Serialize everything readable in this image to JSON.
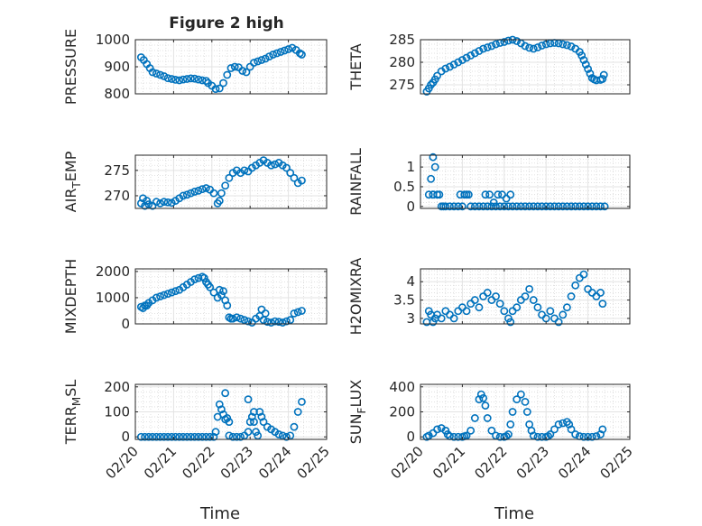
{
  "figure": {
    "title": "Figure 2 high",
    "xlabel": "Time",
    "background": "#ffffff",
    "marker_color": "#0072bd"
  },
  "chart_data": [
    {
      "type": "scatter",
      "id": "pressure",
      "title": "Figure 2 high",
      "ylabel": "PRESSURE",
      "ylabel_main": "PRESSURE",
      "ylabel_sub": "",
      "ylabel_tail": "",
      "xlim": [
        0,
        5
      ],
      "ylim": [
        800,
        1000
      ],
      "yticks": [
        800,
        900,
        1000
      ],
      "ytick_labels": [
        "800",
        "900",
        "1000"
      ],
      "xticks": [
        0,
        1,
        2,
        3,
        4,
        5
      ],
      "xtick_labels": [],
      "xlabel": "",
      "x": [
        0.15,
        0.22,
        0.3,
        0.38,
        0.45,
        0.55,
        0.65,
        0.75,
        0.85,
        0.95,
        1.05,
        1.15,
        1.25,
        1.35,
        1.45,
        1.55,
        1.65,
        1.75,
        1.85,
        1.9,
        2.0,
        2.1,
        2.2,
        2.3,
        2.4,
        2.5,
        2.6,
        2.7,
        2.8,
        2.9,
        3.0,
        3.1,
        3.2,
        3.3,
        3.4,
        3.5,
        3.6,
        3.7,
        3.8,
        3.9,
        4.0,
        4.1,
        4.2,
        4.3,
        4.35
      ],
      "y": [
        935,
        925,
        910,
        895,
        880,
        875,
        870,
        865,
        858,
        855,
        852,
        850,
        853,
        855,
        857,
        856,
        853,
        850,
        848,
        840,
        830,
        818,
        820,
        840,
        870,
        895,
        900,
        898,
        885,
        880,
        900,
        915,
        920,
        925,
        930,
        938,
        945,
        950,
        955,
        960,
        965,
        970,
        962,
        950,
        945
      ]
    },
    {
      "type": "scatter",
      "id": "theta",
      "ylabel": "THETA",
      "ylabel_main": "THETA",
      "ylabel_sub": "",
      "ylabel_tail": "",
      "xlim": [
        0,
        5
      ],
      "ylim": [
        273,
        285
      ],
      "yticks": [
        275,
        280,
        285
      ],
      "ytick_labels": [
        "275",
        "280",
        "285"
      ],
      "xticks": [
        0,
        1,
        2,
        3,
        4,
        5
      ],
      "xtick_labels": [],
      "xlabel": "",
      "x": [
        0.15,
        0.2,
        0.25,
        0.3,
        0.35,
        0.4,
        0.5,
        0.6,
        0.7,
        0.8,
        0.9,
        1.0,
        1.1,
        1.2,
        1.3,
        1.4,
        1.5,
        1.6,
        1.7,
        1.8,
        1.9,
        2.0,
        2.1,
        2.2,
        2.3,
        2.4,
        2.5,
        2.6,
        2.7,
        2.8,
        2.9,
        3.0,
        3.1,
        3.2,
        3.3,
        3.4,
        3.5,
        3.6,
        3.7,
        3.8,
        3.85,
        3.9,
        3.95,
        4.0,
        4.05,
        4.1,
        4.15,
        4.2,
        4.3,
        4.35,
        4.38
      ],
      "y": [
        273.5,
        274.2,
        275.0,
        275.5,
        276.2,
        277.0,
        278.0,
        278.6,
        279.0,
        279.5,
        280.0,
        280.5,
        281.0,
        281.5,
        282.0,
        282.5,
        283.0,
        283.3,
        283.6,
        284.0,
        284.3,
        284.5,
        284.8,
        285.0,
        284.7,
        284.2,
        283.6,
        283.2,
        283.0,
        283.3,
        283.7,
        284.0,
        284.2,
        284.3,
        284.2,
        284.0,
        283.8,
        283.5,
        283.0,
        282.3,
        281.5,
        280.5,
        279.5,
        278.5,
        277.5,
        276.5,
        276.2,
        276.0,
        276.1,
        276.3,
        277.2
      ]
    },
    {
      "type": "scatter",
      "id": "air-temp",
      "ylabel": "AIR_TEMP",
      "ylabel_main": "AIR",
      "ylabel_sub": "T",
      "ylabel_tail": "EMP",
      "xlim": [
        0,
        5
      ],
      "ylim": [
        267.5,
        278
      ],
      "yticks": [
        270,
        275
      ],
      "ytick_labels": [
        "270",
        "275"
      ],
      "xticks": [
        0,
        1,
        2,
        3,
        4,
        5
      ],
      "xtick_labels": [],
      "xlabel": "",
      "x": [
        0.15,
        0.2,
        0.25,
        0.3,
        0.35,
        0.45,
        0.55,
        0.65,
        0.75,
        0.85,
        0.95,
        1.05,
        1.15,
        1.25,
        1.35,
        1.45,
        1.55,
        1.65,
        1.75,
        1.85,
        1.95,
        2.05,
        2.15,
        2.2,
        2.25,
        2.35,
        2.45,
        2.55,
        2.65,
        2.75,
        2.85,
        2.95,
        3.05,
        3.15,
        3.25,
        3.35,
        3.45,
        3.55,
        3.65,
        3.75,
        3.85,
        3.95,
        4.05,
        4.15,
        4.25,
        4.35
      ],
      "y": [
        268.5,
        269.5,
        268.0,
        269.0,
        268.3,
        268.0,
        268.8,
        268.5,
        268.8,
        268.7,
        268.6,
        269.0,
        269.5,
        270.0,
        270.2,
        270.5,
        270.8,
        271.0,
        271.3,
        271.5,
        271.2,
        270.5,
        268.5,
        269.0,
        270.5,
        272.0,
        273.5,
        274.5,
        275.0,
        274.5,
        275.0,
        274.8,
        275.5,
        276.0,
        276.5,
        277.0,
        276.5,
        276.0,
        276.2,
        276.5,
        276.0,
        275.5,
        274.5,
        273.5,
        272.5,
        273.0
      ]
    },
    {
      "type": "scatter",
      "id": "rainfall",
      "ylabel": "RAINFALL",
      "ylabel_main": "RAINFALL",
      "ylabel_sub": "",
      "ylabel_tail": "",
      "xlim": [
        0,
        5
      ],
      "ylim": [
        -0.05,
        1.3
      ],
      "yticks": [
        0,
        0.5,
        1
      ],
      "ytick_labels": [
        "0",
        "0.5",
        "1"
      ],
      "xticks": [
        0,
        1,
        2,
        3,
        4,
        5
      ],
      "xtick_labels": [],
      "xlabel": "",
      "x": [
        0.2,
        0.25,
        0.3,
        0.35,
        0.4,
        0.45,
        0.5,
        0.55,
        0.6,
        0.7,
        0.8,
        0.9,
        1.0,
        1.1,
        1.2,
        1.3,
        1.4,
        1.5,
        1.6,
        1.7,
        1.8,
        1.9,
        2.0,
        2.1,
        2.2,
        2.3,
        2.4,
        2.5,
        2.6,
        2.7,
        2.8,
        2.9,
        3.0,
        3.1,
        3.2,
        3.3,
        3.4,
        3.5,
        3.6,
        3.7,
        3.8,
        3.9,
        4.0,
        4.1,
        4.2,
        4.3,
        4.4,
        0.95,
        1.05,
        1.15,
        1.55,
        1.65,
        1.75,
        1.85,
        1.95,
        2.05,
        2.15,
        0.3,
        0.3
      ],
      "y": [
        0.3,
        0.7,
        1.25,
        1.0,
        0.3,
        0.3,
        0,
        0,
        0,
        0,
        0,
        0,
        0,
        0.3,
        0,
        0,
        0,
        0,
        0,
        0,
        0,
        0,
        0,
        0,
        0,
        0,
        0,
        0,
        0,
        0,
        0,
        0,
        0,
        0,
        0,
        0,
        0,
        0,
        0,
        0,
        0,
        0,
        0,
        0,
        0,
        0,
        0,
        0.3,
        0.3,
        0.3,
        0.3,
        0.3,
        0.1,
        0.3,
        0.3,
        0.2,
        0.3,
        0.3,
        0.3
      ]
    },
    {
      "type": "scatter",
      "id": "mixdepth",
      "ylabel": "MIXDEPTH",
      "ylabel_main": "MIXDEPTH",
      "ylabel_sub": "",
      "ylabel_tail": "",
      "xlim": [
        0,
        5
      ],
      "ylim": [
        0,
        2100
      ],
      "yticks": [
        0,
        1000,
        2000
      ],
      "ytick_labels": [
        "0",
        "1000",
        "2000"
      ],
      "xticks": [
        0,
        1,
        2,
        3,
        4,
        5
      ],
      "xtick_labels": [],
      "xlabel": "",
      "x": [
        0.15,
        0.2,
        0.25,
        0.3,
        0.35,
        0.45,
        0.55,
        0.65,
        0.75,
        0.85,
        0.95,
        1.05,
        1.15,
        1.25,
        1.35,
        1.45,
        1.55,
        1.65,
        1.75,
        1.8,
        1.85,
        1.9,
        1.95,
        2.05,
        2.15,
        2.25,
        2.35,
        2.4,
        2.45,
        2.5,
        2.55,
        2.65,
        2.75,
        2.85,
        2.95,
        3.05,
        3.15,
        3.25,
        3.35,
        3.45,
        3.55,
        3.65,
        3.75,
        3.85,
        3.95,
        4.05,
        4.15,
        4.25,
        4.35,
        2.2,
        2.3,
        3.3,
        3.4
      ],
      "y": [
        650,
        600,
        700,
        700,
        800,
        900,
        1000,
        1050,
        1100,
        1150,
        1200,
        1250,
        1300,
        1400,
        1500,
        1600,
        1700,
        1750,
        1800,
        1750,
        1600,
        1500,
        1400,
        1200,
        1000,
        1100,
        900,
        700,
        250,
        200,
        200,
        250,
        200,
        150,
        100,
        50,
        200,
        300,
        150,
        80,
        50,
        100,
        80,
        50,
        100,
        150,
        400,
        450,
        500,
        1300,
        1250,
        550,
        400
      ]
    },
    {
      "type": "scatter",
      "id": "h2omixra",
      "ylabel": "H2OMIXRA",
      "ylabel_main": "H2OMIXRA",
      "ylabel_sub": "",
      "ylabel_tail": "",
      "xlim": [
        0,
        5
      ],
      "ylim": [
        2.85,
        4.35
      ],
      "yticks": [
        3,
        3.5,
        4
      ],
      "ytick_labels": [
        "3",
        "3.5",
        "4"
      ],
      "xticks": [
        0,
        1,
        2,
        3,
        4,
        5
      ],
      "xtick_labels": [],
      "xlabel": "",
      "x": [
        0.15,
        0.2,
        0.25,
        0.3,
        0.35,
        0.4,
        0.5,
        0.6,
        0.7,
        0.8,
        0.9,
        1.0,
        1.1,
        1.2,
        1.3,
        1.4,
        1.5,
        1.6,
        1.7,
        1.8,
        1.9,
        2.0,
        2.1,
        2.15,
        2.2,
        2.3,
        2.4,
        2.5,
        2.6,
        2.7,
        2.8,
        2.9,
        3.0,
        3.1,
        3.2,
        3.3,
        3.4,
        3.5,
        3.6,
        3.7,
        3.8,
        3.9,
        4.0,
        4.1,
        4.2,
        4.3,
        4.35
      ],
      "y": [
        2.9,
        3.2,
        3.1,
        2.9,
        3.0,
        3.1,
        3.0,
        3.2,
        3.1,
        3.0,
        3.2,
        3.3,
        3.2,
        3.4,
        3.5,
        3.3,
        3.6,
        3.7,
        3.5,
        3.6,
        3.4,
        3.2,
        3.0,
        2.9,
        3.2,
        3.3,
        3.5,
        3.6,
        3.8,
        3.5,
        3.3,
        3.1,
        3.0,
        3.2,
        3.0,
        2.9,
        3.1,
        3.3,
        3.6,
        3.9,
        4.1,
        4.2,
        3.8,
        3.7,
        3.6,
        3.7,
        3.4
      ]
    },
    {
      "type": "scatter",
      "id": "terr-msl",
      "ylabel": "TERR_MSL",
      "ylabel_main": "TERR",
      "ylabel_sub": "M",
      "ylabel_tail": "SL",
      "xlim": [
        0,
        5
      ],
      "ylim": [
        -10,
        210
      ],
      "yticks": [
        0,
        100,
        200
      ],
      "ytick_labels": [
        "0",
        "100",
        "200"
      ],
      "xticks": [
        0,
        1,
        2,
        3,
        4,
        5
      ],
      "xtick_labels": [
        "02/20",
        "02/21",
        "02/22",
        "02/23",
        "02/24",
        "02/25"
      ],
      "xlabel": "Time",
      "x": [
        0.15,
        0.25,
        0.35,
        0.45,
        0.55,
        0.65,
        0.75,
        0.85,
        0.95,
        1.05,
        1.15,
        1.25,
        1.35,
        1.45,
        1.55,
        1.65,
        1.75,
        1.85,
        1.95,
        2.05,
        2.1,
        2.15,
        2.2,
        2.25,
        2.3,
        2.35,
        2.4,
        2.45,
        2.55,
        2.65,
        2.75,
        2.85,
        2.95,
        3.0,
        3.05,
        3.1,
        3.15,
        3.2,
        3.25,
        3.3,
        3.35,
        3.45,
        3.55,
        3.65,
        3.75,
        3.85,
        3.95,
        4.05,
        4.15,
        4.25,
        4.35,
        2.35,
        2.45,
        2.95,
        3.1
      ],
      "y": [
        0,
        0,
        0,
        0,
        0,
        0,
        0,
        0,
        0,
        0,
        0,
        0,
        0,
        0,
        0,
        0,
        0,
        0,
        0,
        0,
        20,
        80,
        130,
        110,
        90,
        70,
        75,
        5,
        0,
        0,
        0,
        5,
        20,
        60,
        80,
        60,
        20,
        5,
        100,
        80,
        60,
        40,
        30,
        20,
        10,
        5,
        0,
        5,
        40,
        100,
        140,
        175,
        60,
        150,
        100
      ]
    },
    {
      "type": "scatter",
      "id": "sun-flux",
      "ylabel": "SUN_FLUX",
      "ylabel_main": "SUN",
      "ylabel_sub": "F",
      "ylabel_tail": "LUX",
      "xlim": [
        0,
        5
      ],
      "ylim": [
        -20,
        420
      ],
      "yticks": [
        0,
        200,
        400
      ],
      "ytick_labels": [
        "0",
        "200",
        "400"
      ],
      "xticks": [
        0,
        1,
        2,
        3,
        4,
        5
      ],
      "xtick_labels": [
        "02/20",
        "02/21",
        "02/22",
        "02/23",
        "02/24",
        "02/25"
      ],
      "xlabel": "Time",
      "x": [
        0.15,
        0.2,
        0.3,
        0.4,
        0.5,
        0.6,
        0.65,
        0.7,
        0.8,
        0.9,
        1.0,
        1.05,
        1.1,
        1.2,
        1.3,
        1.4,
        1.45,
        1.5,
        1.55,
        1.6,
        1.7,
        1.8,
        1.9,
        2.0,
        2.05,
        2.1,
        2.15,
        2.2,
        2.3,
        2.4,
        2.5,
        2.55,
        2.6,
        2.65,
        2.7,
        2.8,
        2.9,
        3.0,
        3.05,
        3.1,
        3.2,
        3.3,
        3.4,
        3.5,
        3.55,
        3.6,
        3.7,
        3.8,
        3.9,
        4.0,
        4.1,
        4.2,
        4.3,
        4.35
      ],
      "y": [
        0,
        10,
        30,
        60,
        70,
        50,
        20,
        5,
        0,
        0,
        0,
        5,
        10,
        50,
        150,
        300,
        340,
        310,
        250,
        150,
        50,
        10,
        0,
        0,
        5,
        20,
        100,
        200,
        300,
        340,
        280,
        200,
        100,
        50,
        10,
        0,
        0,
        0,
        5,
        20,
        60,
        100,
        110,
        120,
        100,
        60,
        20,
        5,
        0,
        0,
        0,
        5,
        20,
        60
      ]
    }
  ]
}
